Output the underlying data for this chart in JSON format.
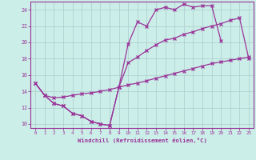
{
  "xlabel": "Windchill (Refroidissement éolien,°C)",
  "bg_color": "#cceee8",
  "grid_color": "#aacccc",
  "line_color": "#993399",
  "xlim": [
    -0.5,
    23.5
  ],
  "ylim": [
    9.5,
    25.0
  ],
  "yticks": [
    10,
    12,
    14,
    16,
    18,
    20,
    22,
    24
  ],
  "xticks": [
    0,
    1,
    2,
    3,
    4,
    5,
    6,
    7,
    8,
    9,
    10,
    11,
    12,
    13,
    14,
    15,
    16,
    17,
    18,
    19,
    20,
    21,
    22,
    23
  ],
  "line1_x": [
    0,
    1,
    2,
    3,
    4,
    5,
    6,
    7,
    8,
    9,
    10,
    11,
    12,
    13,
    14,
    15,
    16,
    17,
    18,
    19,
    20
  ],
  "line1_y": [
    15.0,
    13.5,
    12.5,
    12.2,
    11.3,
    11.0,
    10.3,
    10.0,
    9.8,
    14.5,
    19.8,
    22.5,
    22.0,
    24.0,
    24.3,
    24.0,
    24.7,
    24.3,
    24.5,
    24.5,
    20.2
  ],
  "line2_x": [
    0,
    1,
    2,
    3,
    4,
    5,
    6,
    7,
    8,
    9,
    10,
    11,
    12,
    13,
    14,
    15,
    16,
    17,
    18,
    19,
    20,
    21,
    22,
    23
  ],
  "line2_y": [
    15.0,
    13.5,
    12.5,
    12.2,
    11.3,
    11.0,
    10.3,
    10.0,
    9.8,
    14.5,
    17.5,
    18.2,
    19.0,
    19.7,
    20.3,
    20.5,
    21.0,
    21.3,
    21.7,
    22.0,
    22.3,
    22.7,
    23.0,
    18.0
  ],
  "line3_x": [
    0,
    1,
    2,
    3,
    4,
    5,
    6,
    7,
    8,
    9,
    10,
    11,
    12,
    13,
    14,
    15,
    16,
    17,
    18,
    19,
    20,
    21,
    22,
    23
  ],
  "line3_y": [
    15.0,
    13.5,
    13.2,
    13.3,
    13.5,
    13.7,
    13.8,
    14.0,
    14.2,
    14.5,
    14.8,
    15.0,
    15.3,
    15.6,
    15.9,
    16.2,
    16.5,
    16.8,
    17.1,
    17.4,
    17.6,
    17.8,
    18.0,
    18.2
  ]
}
